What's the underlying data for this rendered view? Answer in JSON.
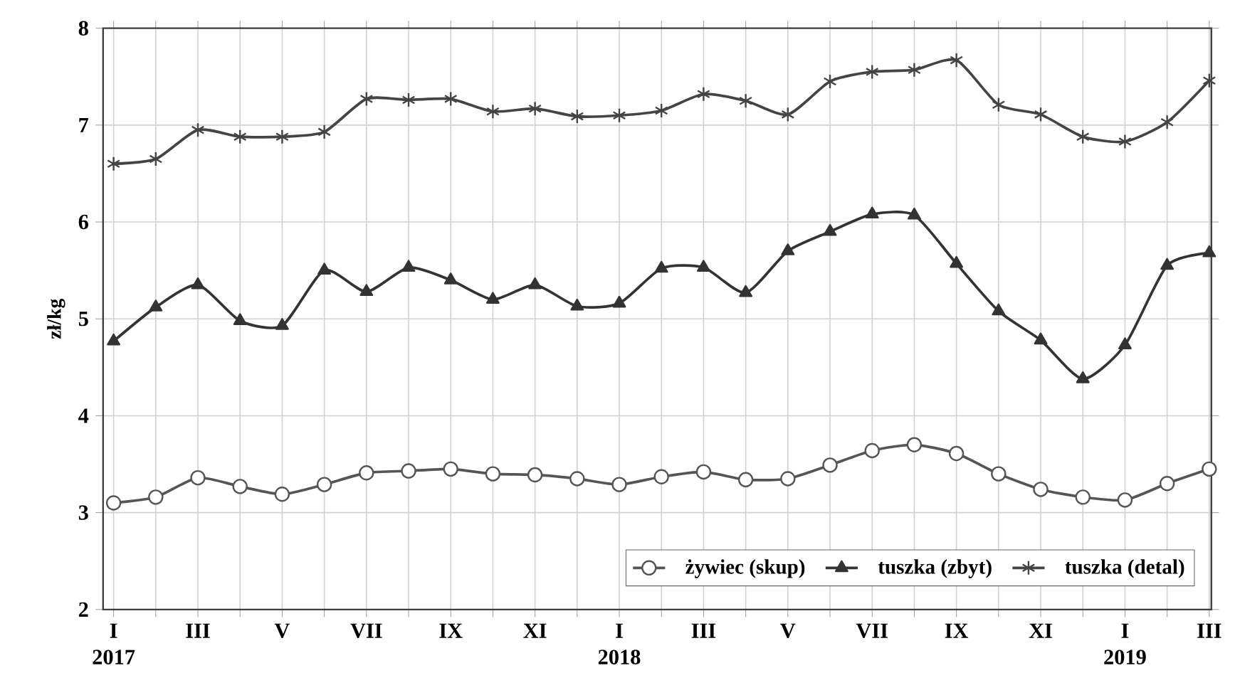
{
  "chart_data": {
    "type": "line",
    "ylabel": "zł/kg",
    "categories": [
      "I 2017",
      null,
      "III",
      null,
      "V",
      null,
      "VII",
      null,
      "IX",
      null,
      "XI",
      null,
      "I 2018",
      null,
      "III",
      null,
      "V",
      null,
      "VII",
      null,
      "IX",
      null,
      "XI",
      null,
      "I 2019",
      null,
      "III"
    ],
    "series": [
      {
        "name": "żywiec (skup)",
        "color": "#555555",
        "marker": "circle",
        "values": [
          3.1,
          3.16,
          3.36,
          3.27,
          3.19,
          3.29,
          3.41,
          3.43,
          3.45,
          3.4,
          3.39,
          3.35,
          3.29,
          3.37,
          3.42,
          3.34,
          3.35,
          3.49,
          3.64,
          3.7,
          3.61,
          3.4,
          3.24,
          3.16,
          3.13,
          3.3,
          3.45
        ]
      },
      {
        "name": "tuszka (zbyt)",
        "color": "#333333",
        "marker": "triangle",
        "values": [
          4.77,
          5.12,
          5.35,
          4.98,
          4.93,
          5.5,
          5.28,
          5.53,
          5.4,
          5.2,
          5.35,
          5.13,
          5.16,
          5.52,
          5.53,
          5.27,
          5.7,
          5.9,
          6.08,
          6.07,
          5.57,
          5.08,
          4.78,
          4.38,
          4.73,
          5.55,
          5.68
        ]
      },
      {
        "name": "tuszka (detal)",
        "color": "#444444",
        "marker": "cross",
        "values": [
          6.6,
          6.65,
          6.95,
          6.88,
          6.88,
          6.93,
          7.27,
          7.26,
          7.27,
          7.14,
          7.17,
          7.09,
          7.1,
          7.15,
          7.32,
          7.25,
          7.11,
          7.45,
          7.55,
          7.57,
          7.67,
          7.21,
          7.11,
          6.88,
          6.83,
          7.03,
          7.46
        ]
      }
    ],
    "ylim": [
      2,
      8
    ],
    "yticks": [
      2,
      3,
      4,
      5,
      6,
      7,
      8
    ],
    "grid": true,
    "legend": "bottom right",
    "line_style": "solid"
  }
}
